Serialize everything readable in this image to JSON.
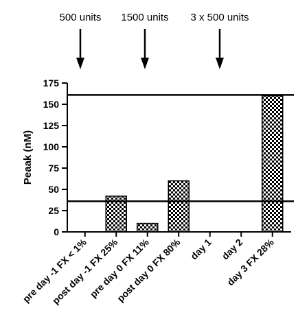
{
  "chart_data": {
    "type": "bar",
    "categories": [
      "pre day -1 FX < 1%",
      "post day -1 FX 25%",
      "pre day 0 FX 11%",
      "post day 0 FX 80%",
      "day 1",
      "day 2",
      "day 3 FX 28%"
    ],
    "values": [
      0,
      42,
      10,
      60,
      0,
      0,
      160
    ],
    "ylabel": "Peaak (nM)",
    "ylim": [
      0,
      175
    ],
    "yticks": [
      0,
      25,
      50,
      75,
      100,
      125,
      150,
      175
    ],
    "reference_lines": [
      36,
      161
    ],
    "grid": false,
    "bar_fill": "checkerboard",
    "annotations": [
      {
        "text": "500 units",
        "category_index": 0
      },
      {
        "text": "1500 units",
        "category_index": 2
      },
      {
        "text": "3 x 500 units",
        "category_index": 4
      }
    ]
  }
}
